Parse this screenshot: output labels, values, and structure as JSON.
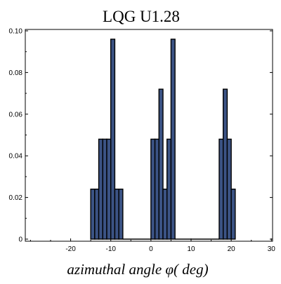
{
  "chart_data": {
    "type": "bar",
    "title": "LQG U1.28",
    "xlabel": "azimuthal angle φ( deg)",
    "ylabel": "",
    "xlim": [
      -30,
      30
    ],
    "ylim": [
      0,
      0.1
    ],
    "x_ticks": [
      -20,
      -10,
      0,
      10,
      20,
      30
    ],
    "y_ticks": [
      0,
      0.02,
      0.04,
      0.06,
      0.08,
      0.1
    ],
    "y_tick_labels": [
      "0",
      "0.02",
      "0.04",
      "0.06",
      "0.08",
      "0.10"
    ],
    "grid": false,
    "legend": "none",
    "bar_color": "#3b5384",
    "edge_color": "#000000",
    "bins": [
      {
        "x0": -15,
        "x1": -14,
        "value": 0.024
      },
      {
        "x0": -14,
        "x1": -13,
        "value": 0.024
      },
      {
        "x0": -13,
        "x1": -12,
        "value": 0.048
      },
      {
        "x0": -12,
        "x1": -11,
        "value": 0.048
      },
      {
        "x0": -11,
        "x1": -10,
        "value": 0.048
      },
      {
        "x0": -10,
        "x1": -9,
        "value": 0.096
      },
      {
        "x0": -9,
        "x1": -8,
        "value": 0.024
      },
      {
        "x0": -8,
        "x1": -7,
        "value": 0.024
      },
      {
        "x0": -7,
        "x1": 0,
        "value": 0
      },
      {
        "x0": 0,
        "x1": 1,
        "value": 0.048
      },
      {
        "x0": 1,
        "x1": 2,
        "value": 0.048
      },
      {
        "x0": 2,
        "x1": 3,
        "value": 0.072
      },
      {
        "x0": 3,
        "x1": 4,
        "value": 0.024
      },
      {
        "x0": 4,
        "x1": 5,
        "value": 0.048
      },
      {
        "x0": 5,
        "x1": 6,
        "value": 0.096
      },
      {
        "x0": 6,
        "x1": 17,
        "value": 0
      },
      {
        "x0": 17,
        "x1": 18,
        "value": 0.048
      },
      {
        "x0": 18,
        "x1": 19,
        "value": 0.072
      },
      {
        "x0": 19,
        "x1": 20,
        "value": 0.048
      },
      {
        "x0": 20,
        "x1": 21,
        "value": 0.024
      }
    ]
  }
}
